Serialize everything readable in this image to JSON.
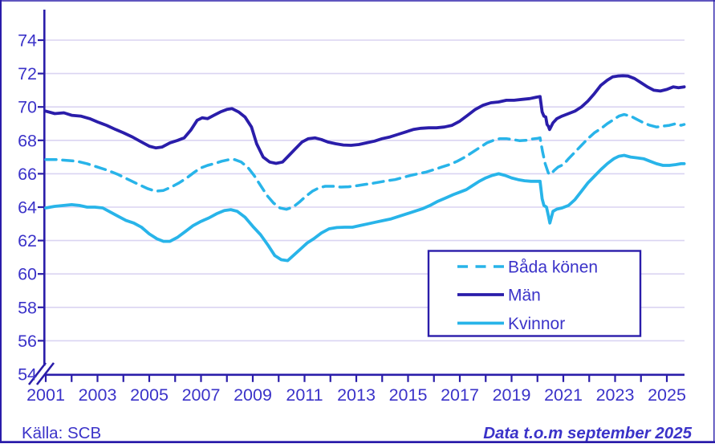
{
  "palette": {
    "navy": "#2a1daa",
    "cyan": "#28b4e9",
    "text": "#3b33c9",
    "grid": "#dad4f2",
    "background": "#ffffff"
  },
  "footer": {
    "source": "Källa: SCB",
    "note": "Data t.o.m september 2025"
  },
  "chart_data": {
    "type": "line",
    "title": "",
    "xlabel": "",
    "ylabel": "",
    "grid": "horizontal",
    "y_axis": {
      "min": 54,
      "max": 74,
      "ticks": [
        74,
        72,
        70,
        68,
        66,
        64,
        62,
        60,
        58,
        56,
        54
      ],
      "axis_break": true
    },
    "x_axis": {
      "start_year": 2001,
      "end": 2025.75,
      "tick_interval_years": 1,
      "label_years": [
        2001,
        2003,
        2005,
        2007,
        2009,
        2011,
        2013,
        2015,
        2017,
        2019,
        2021,
        2023,
        2025
      ]
    },
    "legend": {
      "position": "inside lower right",
      "items": [
        {
          "label": "Båda könen",
          "color": "cyan",
          "dashed": true
        },
        {
          "label": "Män",
          "color": "navy",
          "dashed": false
        },
        {
          "label": "Kvinnor",
          "color": "cyan",
          "dashed": false
        }
      ]
    },
    "series": [
      {
        "name": "Båda könen",
        "points": [
          [
            2001.0,
            66.85
          ],
          [
            2001.4,
            66.85
          ],
          [
            2001.8,
            66.8
          ],
          [
            2002.2,
            66.75
          ],
          [
            2002.6,
            66.6
          ],
          [
            2003.0,
            66.4
          ],
          [
            2003.4,
            66.2
          ],
          [
            2003.8,
            65.95
          ],
          [
            2004.2,
            65.65
          ],
          [
            2004.6,
            65.35
          ],
          [
            2004.95,
            65.1
          ],
          [
            2005.25,
            64.95
          ],
          [
            2005.55,
            65.0
          ],
          [
            2005.85,
            65.2
          ],
          [
            2006.15,
            65.45
          ],
          [
            2006.45,
            65.75
          ],
          [
            2006.75,
            66.1
          ],
          [
            2007.0,
            66.35
          ],
          [
            2007.25,
            66.5
          ],
          [
            2007.5,
            66.6
          ],
          [
            2007.8,
            66.75
          ],
          [
            2008.1,
            66.85
          ],
          [
            2008.3,
            66.85
          ],
          [
            2008.55,
            66.7
          ],
          [
            2008.8,
            66.4
          ],
          [
            2009.05,
            65.9
          ],
          [
            2009.3,
            65.3
          ],
          [
            2009.55,
            64.7
          ],
          [
            2009.8,
            64.25
          ],
          [
            2010.05,
            63.95
          ],
          [
            2010.3,
            63.87
          ],
          [
            2010.55,
            64.0
          ],
          [
            2010.8,
            64.3
          ],
          [
            2011.05,
            64.65
          ],
          [
            2011.3,
            64.95
          ],
          [
            2011.55,
            65.15
          ],
          [
            2011.8,
            65.25
          ],
          [
            2012.1,
            65.25
          ],
          [
            2012.4,
            65.2
          ],
          [
            2012.7,
            65.22
          ],
          [
            2013.0,
            65.28
          ],
          [
            2013.3,
            65.35
          ],
          [
            2013.6,
            65.42
          ],
          [
            2013.9,
            65.5
          ],
          [
            2014.2,
            65.58
          ],
          [
            2014.5,
            65.65
          ],
          [
            2014.8,
            65.78
          ],
          [
            2015.1,
            65.9
          ],
          [
            2015.4,
            66.0
          ],
          [
            2015.7,
            66.1
          ],
          [
            2016.0,
            66.25
          ],
          [
            2016.3,
            66.4
          ],
          [
            2016.6,
            66.55
          ],
          [
            2016.9,
            66.75
          ],
          [
            2017.2,
            67.0
          ],
          [
            2017.5,
            67.3
          ],
          [
            2017.8,
            67.6
          ],
          [
            2018.05,
            67.85
          ],
          [
            2018.3,
            68.0
          ],
          [
            2018.55,
            68.1
          ],
          [
            2018.8,
            68.1
          ],
          [
            2019.05,
            68.05
          ],
          [
            2019.3,
            67.98
          ],
          [
            2019.55,
            68.0
          ],
          [
            2019.8,
            68.08
          ],
          [
            2020.0,
            68.12
          ],
          [
            2020.1,
            68.15
          ],
          [
            2020.2,
            67.3
          ],
          [
            2020.3,
            66.6
          ],
          [
            2020.42,
            66.05
          ],
          [
            2020.5,
            65.95
          ],
          [
            2020.65,
            66.2
          ],
          [
            2020.8,
            66.4
          ],
          [
            2021.0,
            66.55
          ],
          [
            2021.2,
            66.9
          ],
          [
            2021.45,
            67.3
          ],
          [
            2021.7,
            67.7
          ],
          [
            2021.95,
            68.1
          ],
          [
            2022.2,
            68.45
          ],
          [
            2022.45,
            68.7
          ],
          [
            2022.7,
            69.0
          ],
          [
            2022.95,
            69.25
          ],
          [
            2023.15,
            69.45
          ],
          [
            2023.35,
            69.55
          ],
          [
            2023.6,
            69.45
          ],
          [
            2023.85,
            69.25
          ],
          [
            2024.1,
            69.05
          ],
          [
            2024.35,
            68.9
          ],
          [
            2024.6,
            68.8
          ],
          [
            2024.85,
            68.85
          ],
          [
            2025.1,
            68.9
          ],
          [
            2025.35,
            69.0
          ],
          [
            2025.55,
            68.9
          ],
          [
            2025.67,
            68.95
          ]
        ]
      },
      {
        "name": "Män",
        "points": [
          [
            2001.0,
            69.75
          ],
          [
            2001.35,
            69.6
          ],
          [
            2001.7,
            69.65
          ],
          [
            2002.0,
            69.5
          ],
          [
            2002.35,
            69.45
          ],
          [
            2002.7,
            69.3
          ],
          [
            2003.0,
            69.1
          ],
          [
            2003.35,
            68.9
          ],
          [
            2003.7,
            68.65
          ],
          [
            2004.0,
            68.45
          ],
          [
            2004.35,
            68.2
          ],
          [
            2004.7,
            67.9
          ],
          [
            2005.0,
            67.65
          ],
          [
            2005.25,
            67.55
          ],
          [
            2005.5,
            67.6
          ],
          [
            2005.8,
            67.85
          ],
          [
            2006.1,
            68.0
          ],
          [
            2006.35,
            68.15
          ],
          [
            2006.6,
            68.6
          ],
          [
            2006.85,
            69.2
          ],
          [
            2007.05,
            69.35
          ],
          [
            2007.25,
            69.3
          ],
          [
            2007.5,
            69.5
          ],
          [
            2007.75,
            69.7
          ],
          [
            2008.0,
            69.85
          ],
          [
            2008.2,
            69.9
          ],
          [
            2008.45,
            69.7
          ],
          [
            2008.7,
            69.4
          ],
          [
            2008.95,
            68.8
          ],
          [
            2009.15,
            67.8
          ],
          [
            2009.4,
            67.0
          ],
          [
            2009.65,
            66.7
          ],
          [
            2009.9,
            66.62
          ],
          [
            2010.15,
            66.7
          ],
          [
            2010.4,
            67.1
          ],
          [
            2010.65,
            67.5
          ],
          [
            2010.9,
            67.9
          ],
          [
            2011.15,
            68.1
          ],
          [
            2011.4,
            68.15
          ],
          [
            2011.65,
            68.05
          ],
          [
            2011.9,
            67.9
          ],
          [
            2012.2,
            67.8
          ],
          [
            2012.5,
            67.72
          ],
          [
            2012.8,
            67.7
          ],
          [
            2013.1,
            67.75
          ],
          [
            2013.4,
            67.85
          ],
          [
            2013.7,
            67.95
          ],
          [
            2014.0,
            68.1
          ],
          [
            2014.3,
            68.2
          ],
          [
            2014.6,
            68.35
          ],
          [
            2014.9,
            68.5
          ],
          [
            2015.2,
            68.65
          ],
          [
            2015.5,
            68.72
          ],
          [
            2015.8,
            68.75
          ],
          [
            2016.1,
            68.75
          ],
          [
            2016.4,
            68.8
          ],
          [
            2016.7,
            68.9
          ],
          [
            2017.0,
            69.15
          ],
          [
            2017.3,
            69.5
          ],
          [
            2017.6,
            69.85
          ],
          [
            2017.9,
            70.1
          ],
          [
            2018.2,
            70.25
          ],
          [
            2018.5,
            70.3
          ],
          [
            2018.8,
            70.4
          ],
          [
            2019.1,
            70.4
          ],
          [
            2019.4,
            70.45
          ],
          [
            2019.7,
            70.5
          ],
          [
            2019.95,
            70.58
          ],
          [
            2020.1,
            70.62
          ],
          [
            2020.18,
            69.7
          ],
          [
            2020.25,
            69.45
          ],
          [
            2020.32,
            69.4
          ],
          [
            2020.37,
            68.95
          ],
          [
            2020.42,
            68.85
          ],
          [
            2020.47,
            68.65
          ],
          [
            2020.6,
            69.05
          ],
          [
            2020.75,
            69.3
          ],
          [
            2020.95,
            69.45
          ],
          [
            2021.2,
            69.6
          ],
          [
            2021.45,
            69.75
          ],
          [
            2021.7,
            70.0
          ],
          [
            2021.95,
            70.35
          ],
          [
            2022.2,
            70.8
          ],
          [
            2022.45,
            71.3
          ],
          [
            2022.7,
            71.6
          ],
          [
            2022.9,
            71.8
          ],
          [
            2023.1,
            71.85
          ],
          [
            2023.3,
            71.87
          ],
          [
            2023.5,
            71.85
          ],
          [
            2023.75,
            71.7
          ],
          [
            2024.0,
            71.45
          ],
          [
            2024.25,
            71.2
          ],
          [
            2024.5,
            71.0
          ],
          [
            2024.75,
            70.95
          ],
          [
            2025.0,
            71.05
          ],
          [
            2025.25,
            71.2
          ],
          [
            2025.45,
            71.15
          ],
          [
            2025.67,
            71.2
          ]
        ]
      },
      {
        "name": "Kvinnor",
        "points": [
          [
            2001.0,
            63.95
          ],
          [
            2001.35,
            64.05
          ],
          [
            2001.7,
            64.1
          ],
          [
            2002.0,
            64.15
          ],
          [
            2002.3,
            64.1
          ],
          [
            2002.6,
            64.0
          ],
          [
            2002.9,
            64.0
          ],
          [
            2003.2,
            63.95
          ],
          [
            2003.5,
            63.7
          ],
          [
            2003.8,
            63.45
          ],
          [
            2004.1,
            63.2
          ],
          [
            2004.4,
            63.05
          ],
          [
            2004.7,
            62.8
          ],
          [
            2005.0,
            62.4
          ],
          [
            2005.3,
            62.1
          ],
          [
            2005.55,
            61.95
          ],
          [
            2005.8,
            61.95
          ],
          [
            2006.1,
            62.2
          ],
          [
            2006.4,
            62.55
          ],
          [
            2006.7,
            62.9
          ],
          [
            2007.0,
            63.15
          ],
          [
            2007.3,
            63.35
          ],
          [
            2007.6,
            63.6
          ],
          [
            2007.9,
            63.8
          ],
          [
            2008.15,
            63.85
          ],
          [
            2008.4,
            63.75
          ],
          [
            2008.7,
            63.4
          ],
          [
            2009.0,
            62.85
          ],
          [
            2009.3,
            62.35
          ],
          [
            2009.6,
            61.7
          ],
          [
            2009.85,
            61.1
          ],
          [
            2010.1,
            60.85
          ],
          [
            2010.35,
            60.8
          ],
          [
            2010.6,
            61.15
          ],
          [
            2010.85,
            61.5
          ],
          [
            2011.1,
            61.85
          ],
          [
            2011.35,
            62.1
          ],
          [
            2011.65,
            62.45
          ],
          [
            2011.95,
            62.7
          ],
          [
            2012.25,
            62.78
          ],
          [
            2012.55,
            62.8
          ],
          [
            2012.85,
            62.8
          ],
          [
            2013.15,
            62.9
          ],
          [
            2013.45,
            63.0
          ],
          [
            2013.75,
            63.1
          ],
          [
            2014.05,
            63.2
          ],
          [
            2014.35,
            63.3
          ],
          [
            2014.65,
            63.45
          ],
          [
            2014.95,
            63.6
          ],
          [
            2015.25,
            63.75
          ],
          [
            2015.55,
            63.9
          ],
          [
            2015.85,
            64.1
          ],
          [
            2016.15,
            64.35
          ],
          [
            2016.45,
            64.55
          ],
          [
            2016.75,
            64.75
          ],
          [
            2017.0,
            64.9
          ],
          [
            2017.25,
            65.05
          ],
          [
            2017.5,
            65.3
          ],
          [
            2017.75,
            65.55
          ],
          [
            2018.0,
            65.75
          ],
          [
            2018.25,
            65.9
          ],
          [
            2018.5,
            66.0
          ],
          [
            2018.75,
            65.9
          ],
          [
            2019.0,
            65.75
          ],
          [
            2019.25,
            65.65
          ],
          [
            2019.5,
            65.58
          ],
          [
            2019.75,
            65.55
          ],
          [
            2019.95,
            65.55
          ],
          [
            2020.1,
            65.55
          ],
          [
            2020.18,
            64.5
          ],
          [
            2020.25,
            64.1
          ],
          [
            2020.35,
            64.0
          ],
          [
            2020.42,
            63.5
          ],
          [
            2020.48,
            63.05
          ],
          [
            2020.6,
            63.75
          ],
          [
            2020.75,
            63.88
          ],
          [
            2020.95,
            63.95
          ],
          [
            2021.2,
            64.1
          ],
          [
            2021.45,
            64.45
          ],
          [
            2021.7,
            64.95
          ],
          [
            2021.95,
            65.45
          ],
          [
            2022.2,
            65.85
          ],
          [
            2022.45,
            66.25
          ],
          [
            2022.7,
            66.6
          ],
          [
            2022.95,
            66.9
          ],
          [
            2023.15,
            67.05
          ],
          [
            2023.35,
            67.1
          ],
          [
            2023.6,
            67.0
          ],
          [
            2023.85,
            66.95
          ],
          [
            2024.1,
            66.9
          ],
          [
            2024.35,
            66.75
          ],
          [
            2024.6,
            66.6
          ],
          [
            2024.85,
            66.5
          ],
          [
            2025.1,
            66.5
          ],
          [
            2025.35,
            66.55
          ],
          [
            2025.55,
            66.6
          ],
          [
            2025.67,
            66.6
          ]
        ]
      }
    ]
  }
}
